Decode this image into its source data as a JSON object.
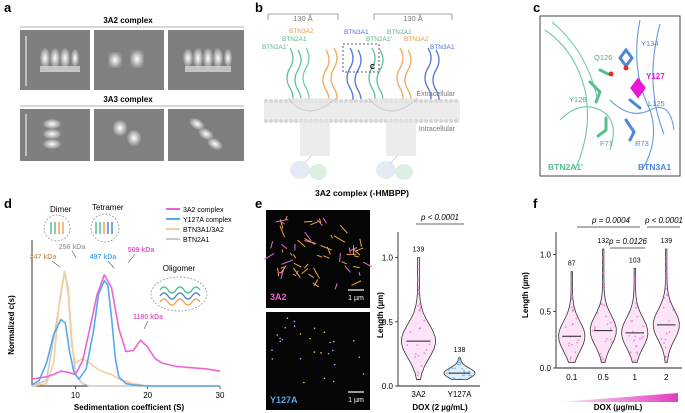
{
  "panel_labels": {
    "a": "a",
    "b": "b",
    "c": "c",
    "d": "d",
    "e": "e",
    "f": "f"
  },
  "panel_a": {
    "row1_title": "3A2 complex",
    "row2_title": "3A3 complex",
    "scale_label": "240 Å"
  },
  "panel_b": {
    "dim_left": "130 Å",
    "dim_right": "130 Å",
    "chain_labels": [
      "BTN3A2",
      "BTN2A1",
      "BTN2A1'",
      "BTN3A1",
      "BTN2A1'",
      "BTN2A1",
      "BTN3A2",
      "BTN3A1"
    ],
    "box_label": "C",
    "extracellular": "Extracellular",
    "intracellular": "Intracellular",
    "caption": "3A2 complex (-HMBPP)"
  },
  "panel_c": {
    "residues": [
      "Q126",
      "Y134",
      "Y127",
      "Y126",
      "L125",
      "F71",
      "R73"
    ],
    "chain_left": "BTN2A1'",
    "chain_right": "BTN3A1",
    "colors": {
      "btn2a1": "#56c08e",
      "btn3a1": "#4c86d9",
      "y127": "#e816d6"
    }
  },
  "panel_d": {
    "annotations": {
      "dimer": "Dimer",
      "tetramer": "Tetramer",
      "oligomer": "Oligomer",
      "kda_247": "247 kDa",
      "kda_256": "256 kDa",
      "kda_497": "497 kDa",
      "kda_509": "509 kDa",
      "kda_1180": "1180 kDa"
    }
  },
  "panel_e": {
    "img_top_label": "3A2",
    "img_bottom_label": "Y127A",
    "scale_label": "1 µm",
    "pvalue": "p < 0.0001"
  },
  "panel_f": {
    "p1": "p = 0.0004",
    "p2": "p = 0.0126",
    "p3": "p < 0.0001",
    "gradient_label": "DOX (µg/mL)"
  },
  "chart_data": [
    {
      "type": "line",
      "panel": "d",
      "xlabel": "Sedimentation coefficient (S)",
      "ylabel": "Normalized c(s)",
      "xlim": [
        4,
        30
      ],
      "ylim": [
        0,
        1.1
      ],
      "xticks": [
        10,
        20,
        30
      ],
      "legend_position": "top-right",
      "series": [
        {
          "name": "3A2 complex",
          "color": "#ef62d6",
          "x": [
            4,
            6,
            7,
            8,
            9,
            10,
            11,
            12,
            13,
            14,
            15,
            16,
            17,
            18,
            19,
            20,
            21,
            22,
            24,
            26,
            28,
            30
          ],
          "y": [
            0.06,
            0.08,
            0.1,
            0.13,
            0.12,
            0.1,
            0.22,
            0.5,
            0.8,
            0.97,
            0.86,
            0.5,
            0.3,
            0.31,
            0.4,
            0.34,
            0.24,
            0.2,
            0.17,
            0.16,
            0.15,
            0.13
          ]
        },
        {
          "name": "Y127A complex",
          "color": "#56a9ea",
          "x": [
            4,
            5,
            6,
            7,
            8,
            8.6,
            9.2,
            9.8,
            10.5,
            11.5,
            12.5,
            13.2,
            14,
            14.5,
            15,
            15.5,
            16,
            17,
            18,
            20,
            30
          ],
          "y": [
            0.01,
            0.05,
            0.2,
            0.45,
            0.58,
            0.55,
            0.3,
            0.12,
            0.06,
            0.15,
            0.48,
            0.8,
            0.92,
            0.88,
            0.6,
            0.25,
            0.08,
            0.02,
            0.01,
            0.0,
            0.0
          ]
        },
        {
          "name": "BTN3A1/3A2",
          "color": "#f4cf98",
          "x": [
            4,
            6,
            7,
            7.8,
            8.5,
            9,
            9.5,
            10,
            11,
            12,
            13,
            14,
            15,
            16,
            18,
            20,
            30
          ],
          "y": [
            0.0,
            0.02,
            0.2,
            0.75,
            1.0,
            0.8,
            0.35,
            0.2,
            0.24,
            0.2,
            0.15,
            0.12,
            0.1,
            0.06,
            0.02,
            0.0,
            0.0
          ]
        },
        {
          "name": "BTN2A1",
          "color": "#c9c9c9",
          "x": [
            4,
            6,
            7.5,
            8.5,
            9,
            9.5,
            10,
            11,
            12,
            14,
            30
          ],
          "y": [
            0.0,
            0.05,
            0.6,
            1.0,
            0.85,
            0.4,
            0.1,
            0.02,
            0.0,
            0.0,
            0.0
          ]
        }
      ]
    },
    {
      "type": "violin",
      "panel": "e",
      "ylabel": "Length (µm)",
      "xlabel": "DOX (2 µg/mL)",
      "ylim": [
        0,
        1.2
      ],
      "yticks": [
        0.0,
        0.5,
        1.0
      ],
      "categories": [
        "3A2",
        "Y127A"
      ],
      "n": [
        139,
        138
      ],
      "medians": [
        0.35,
        0.1
      ],
      "maxima": [
        1.0,
        0.22
      ],
      "colors": [
        "#ef62d6",
        "#56a9ea"
      ]
    },
    {
      "type": "violin",
      "panel": "f",
      "ylabel": "Length (µm)",
      "xlabel": "DOX (µg/mL)",
      "ylim": [
        0,
        1.2
      ],
      "yticks": [
        0.0,
        0.5,
        1.0
      ],
      "categories": [
        "0.1",
        "0.5",
        "1",
        "2"
      ],
      "n": [
        87,
        132,
        103,
        139
      ],
      "medians": [
        0.28,
        0.33,
        0.31,
        0.38
      ],
      "maxima": [
        0.85,
        1.05,
        0.88,
        1.05
      ],
      "colors": [
        "#ef62d6",
        "#ef62d6",
        "#ef62d6",
        "#ef62d6"
      ]
    }
  ]
}
